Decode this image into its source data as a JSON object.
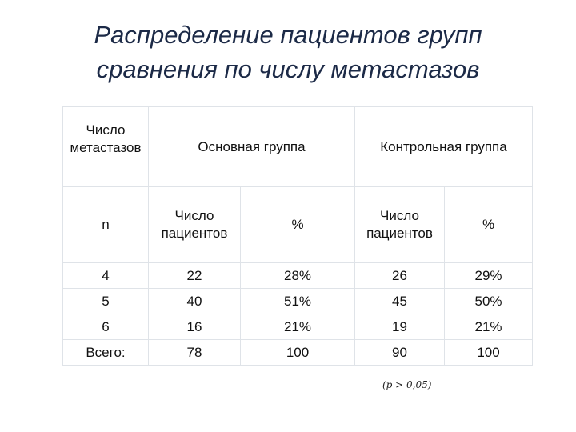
{
  "header": {
    "title": "Распределение пациентов групп сравнения по числу метастазов"
  },
  "table": {
    "header": [
      "Число метастазов",
      "Основная группа",
      "Контрольная группа"
    ],
    "subheader": [
      "n",
      "Число пациентов",
      "%",
      "Число пациентов",
      "%"
    ],
    "rows": [
      [
        "4",
        "22",
        "28%",
        "26",
        "29%"
      ],
      [
        "5",
        "40",
        "51%",
        "45",
        "50%"
      ],
      [
        "6",
        "16",
        "21%",
        "19",
        "21%"
      ],
      [
        "Всего:",
        "78",
        "100",
        "90",
        "100"
      ]
    ]
  },
  "footnote": "(p > 0,05)"
}
